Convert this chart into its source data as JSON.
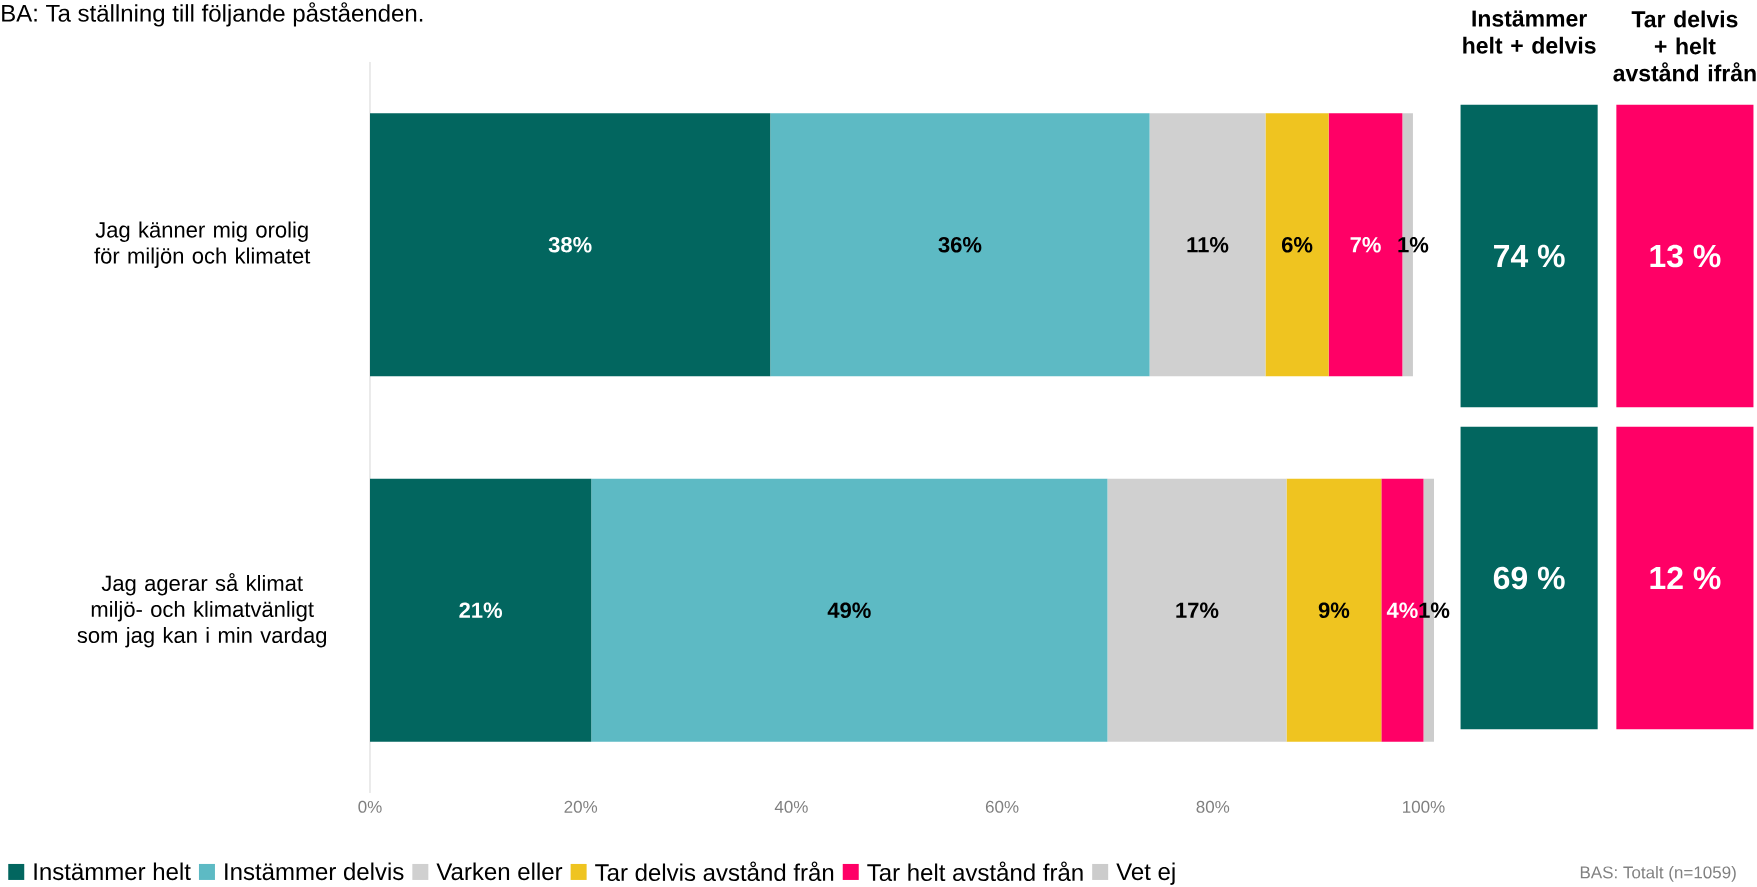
{
  "chart_data": [
    {
      "type": "bar",
      "orientation": "horizontal",
      "stacked": true,
      "title": "BA: Ta ställning till följande påståenden.",
      "categories": [
        "Jag känner mig orolig för miljön och klimatet",
        "Jag agerar så klimat miljö- och klimatvänligt som jag kan i min vardag"
      ],
      "series": [
        {
          "name": "Instämmer helt",
          "color": "#02665f",
          "values": [
            38,
            21
          ],
          "value_labels": [
            "38%",
            "21%"
          ]
        },
        {
          "name": "Instämmer delvis",
          "color": "#5dbac4",
          "values": [
            36,
            49
          ],
          "value_labels": [
            "36%",
            "49%"
          ]
        },
        {
          "name": "Varken eller",
          "color": "#d0d0d0",
          "values": [
            11,
            17
          ],
          "value_labels": [
            "11%",
            "17%"
          ]
        },
        {
          "name": "Tar delvis avstånd från",
          "color": "#efc420",
          "values": [
            6,
            9
          ],
          "value_labels": [
            "6%",
            "9%"
          ]
        },
        {
          "name": "Tar helt avstånd från",
          "color": "#ff0066",
          "values": [
            7,
            4
          ],
          "value_labels": [
            "7%",
            "4%"
          ]
        },
        {
          "name": "Vet ej",
          "color": "#cccccc",
          "values": [
            1,
            1
          ],
          "value_labels": [
            "1%",
            "1%"
          ]
        }
      ],
      "xlim": [
        0,
        101
      ],
      "xticks": [
        {
          "value": 0,
          "label": "0%"
        },
        {
          "value": 20,
          "label": "20%"
        },
        {
          "value": 40,
          "label": "40%"
        },
        {
          "value": 60,
          "label": "60%"
        },
        {
          "value": 80,
          "label": "80%"
        },
        {
          "value": 100,
          "label": "100%"
        }
      ],
      "legend": "bottom",
      "annotations": [
        "BAS: Totalt (n=1059)"
      ]
    },
    {
      "type": "other",
      "categories": [
        "Instämmer helt + delvis",
        "Tar delvis + helt avstånd ifrån"
      ],
      "series": [
        {
          "colors": [
            "#02665f",
            "#ff0066"
          ],
          "values": [
            74,
            13
          ],
          "value_labels": [
            "74 %",
            "13 %"
          ]
        },
        {
          "colors": [
            "#02665f",
            "#ff0066"
          ],
          "values": [
            69,
            12
          ],
          "value_labels": [
            "69 %",
            "12 %"
          ]
        }
      ]
    }
  ]
}
